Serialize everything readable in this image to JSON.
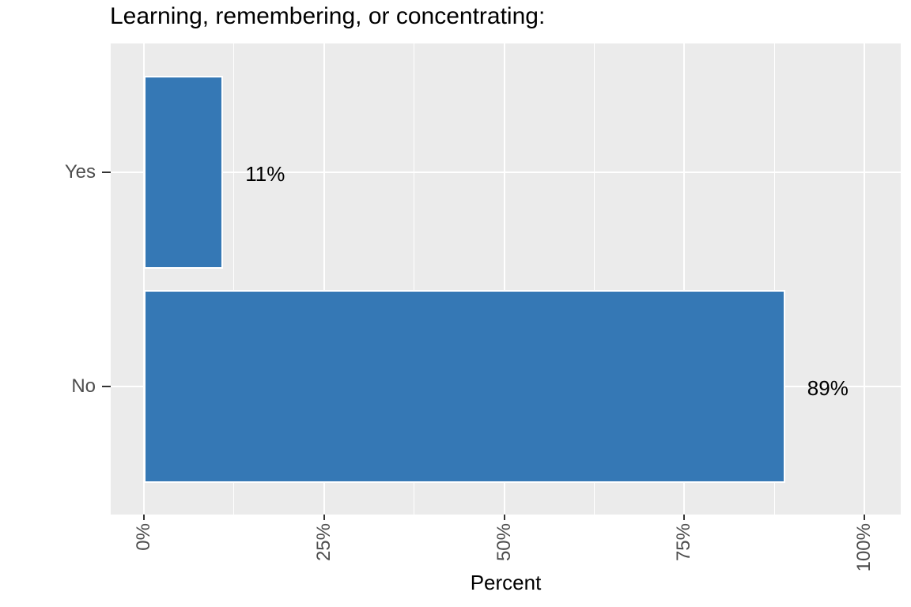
{
  "chart_data": {
    "type": "bar",
    "orientation": "horizontal",
    "title": "Learning, remembering, or concentrating:",
    "xlabel": "Percent",
    "ylabel": "",
    "categories": [
      "Yes",
      "No"
    ],
    "values": [
      11,
      89
    ],
    "bar_labels": [
      "11%",
      "89%"
    ],
    "x_ticks": [
      {
        "value": 0,
        "label": "0%"
      },
      {
        "value": 25,
        "label": "25%"
      },
      {
        "value": 50,
        "label": "50%"
      },
      {
        "value": 75,
        "label": "75%"
      },
      {
        "value": 100,
        "label": "100%"
      }
    ],
    "x_minor_ticks": [
      12.5,
      37.5,
      62.5,
      87.5
    ],
    "xlim": [
      0,
      100
    ],
    "grid": true,
    "legend": false,
    "theme": "ggplot-grey",
    "colors": {
      "bar_fill": "#3578b5",
      "bar_stroke": "#ffffff",
      "panel_background": "#ebebeb",
      "gridline": "#ffffff",
      "axis_text": "#4d4d4d",
      "title_text": "#000000",
      "tick_mark": "#333333"
    }
  }
}
